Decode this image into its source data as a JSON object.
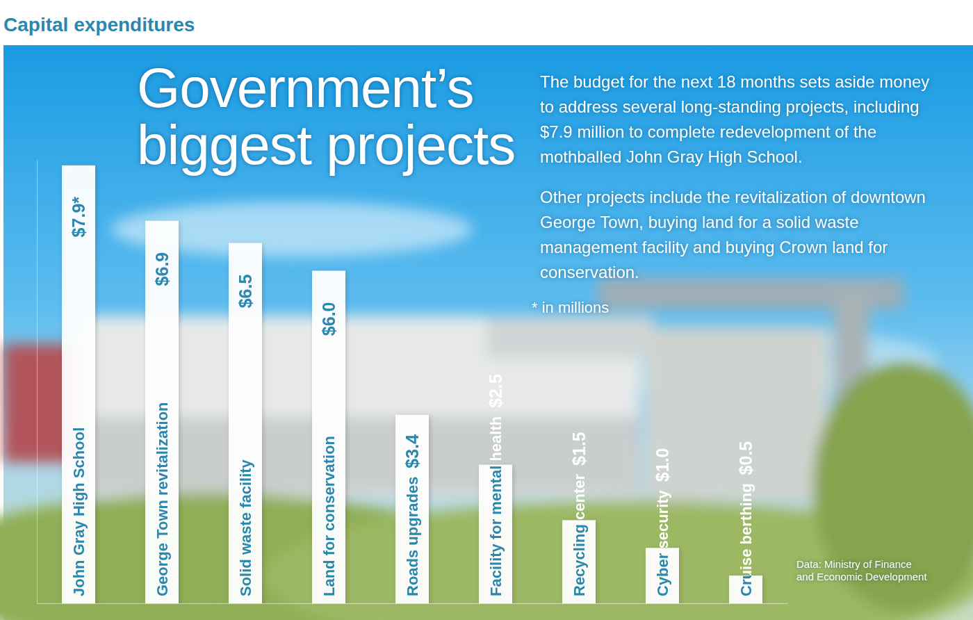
{
  "chart_data": {
    "type": "bar",
    "subtitle": "Capital expenditures",
    "title": "Government’s biggest projects",
    "annotations": [
      "The budget for the next 18 months sets aside money to address several long-standing projects, including $7.9 million to complete redevelopment of the mothballed John Gray High School.",
      "Other projects include the revitalization of downtown George Town, buying land for a solid waste management facility and buying Crown land for conservation.",
      "* in millions"
    ],
    "source": "Data: Ministry of Finance and Economic Development",
    "categories": [
      "John Gray High School",
      "George Town revitalization",
      "Solid waste facility",
      "Land for conservation",
      "Roads upgrades",
      "Facility for mental health",
      "Recycling center",
      "Cyber security",
      "Cruise berthing"
    ],
    "values": [
      7.9,
      6.9,
      6.5,
      6.0,
      3.4,
      2.5,
      1.5,
      1.0,
      0.5
    ],
    "value_labels": [
      "$7.9*",
      "$6.9",
      "$6.5",
      "$6.0",
      "$3.4",
      "$2.5",
      "$1.5",
      "$1.0",
      "$0.5"
    ],
    "color": "#ffffff",
    "ylim": [
      0,
      8
    ],
    "yticks": [],
    "tick_labels": false,
    "data_labels": true,
    "grid": false
  }
}
